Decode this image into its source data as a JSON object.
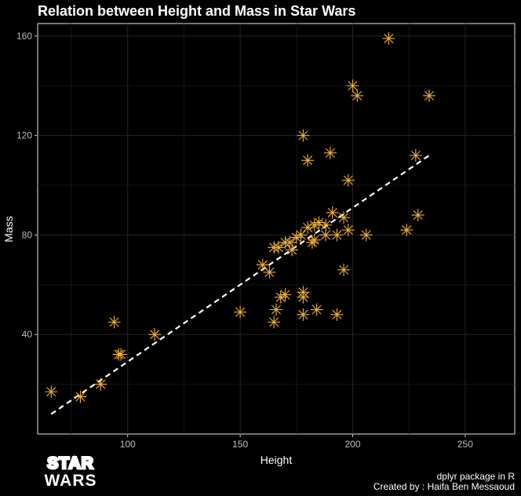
{
  "chart_data": {
    "type": "scatter",
    "title": "Relation between Height and Mass in Star Wars",
    "xlabel": "Height",
    "ylabel": "Mass",
    "xlim": [
      60,
      272
    ],
    "ylim": [
      0,
      165
    ],
    "xticks": [
      100,
      150,
      200,
      250
    ],
    "yticks": [
      40,
      80,
      120,
      160
    ],
    "grid": true,
    "marker": "asterisk",
    "marker_color": "#f0b13c",
    "trend_line": {
      "style": "dashed",
      "color": "#ffffff",
      "x": [
        66,
        234
      ],
      "y": [
        8,
        112
      ]
    },
    "points": [
      {
        "x": 66,
        "y": 17
      },
      {
        "x": 79,
        "y": 15
      },
      {
        "x": 88,
        "y": 20
      },
      {
        "x": 94,
        "y": 45
      },
      {
        "x": 96,
        "y": 32
      },
      {
        "x": 97,
        "y": 32
      },
      {
        "x": 112,
        "y": 40
      },
      {
        "x": 150,
        "y": 49
      },
      {
        "x": 160,
        "y": 68
      },
      {
        "x": 163,
        "y": 65
      },
      {
        "x": 165,
        "y": 75
      },
      {
        "x": 165,
        "y": 45
      },
      {
        "x": 166,
        "y": 50
      },
      {
        "x": 167,
        "y": 75
      },
      {
        "x": 168,
        "y": 55
      },
      {
        "x": 170,
        "y": 77
      },
      {
        "x": 170,
        "y": 56
      },
      {
        "x": 172,
        "y": 77
      },
      {
        "x": 173,
        "y": 74
      },
      {
        "x": 175,
        "y": 79
      },
      {
        "x": 177,
        "y": 80
      },
      {
        "x": 178,
        "y": 57
      },
      {
        "x": 178,
        "y": 55
      },
      {
        "x": 178,
        "y": 48
      },
      {
        "x": 178,
        "y": 120
      },
      {
        "x": 180,
        "y": 110
      },
      {
        "x": 180,
        "y": 83
      },
      {
        "x": 182,
        "y": 77
      },
      {
        "x": 183,
        "y": 78
      },
      {
        "x": 183,
        "y": 84
      },
      {
        "x": 184,
        "y": 50
      },
      {
        "x": 185,
        "y": 85
      },
      {
        "x": 188,
        "y": 84
      },
      {
        "x": 188,
        "y": 80
      },
      {
        "x": 190,
        "y": 113
      },
      {
        "x": 191,
        "y": 89
      },
      {
        "x": 193,
        "y": 48
      },
      {
        "x": 193,
        "y": 80
      },
      {
        "x": 196,
        "y": 66
      },
      {
        "x": 196,
        "y": 87
      },
      {
        "x": 198,
        "y": 102
      },
      {
        "x": 198,
        "y": 82
      },
      {
        "x": 200,
        "y": 140
      },
      {
        "x": 202,
        "y": 136
      },
      {
        "x": 206,
        "y": 80
      },
      {
        "x": 216,
        "y": 159
      },
      {
        "x": 224,
        "y": 82
      },
      {
        "x": 228,
        "y": 112
      },
      {
        "x": 229,
        "y": 88
      },
      {
        "x": 234,
        "y": 136
      }
    ]
  },
  "caption": {
    "line1": "dplyr package in R",
    "line2": "Created by : Haifa Ben Messaoud"
  },
  "logo": {
    "top": "STAR",
    "bottom": "WARS"
  }
}
